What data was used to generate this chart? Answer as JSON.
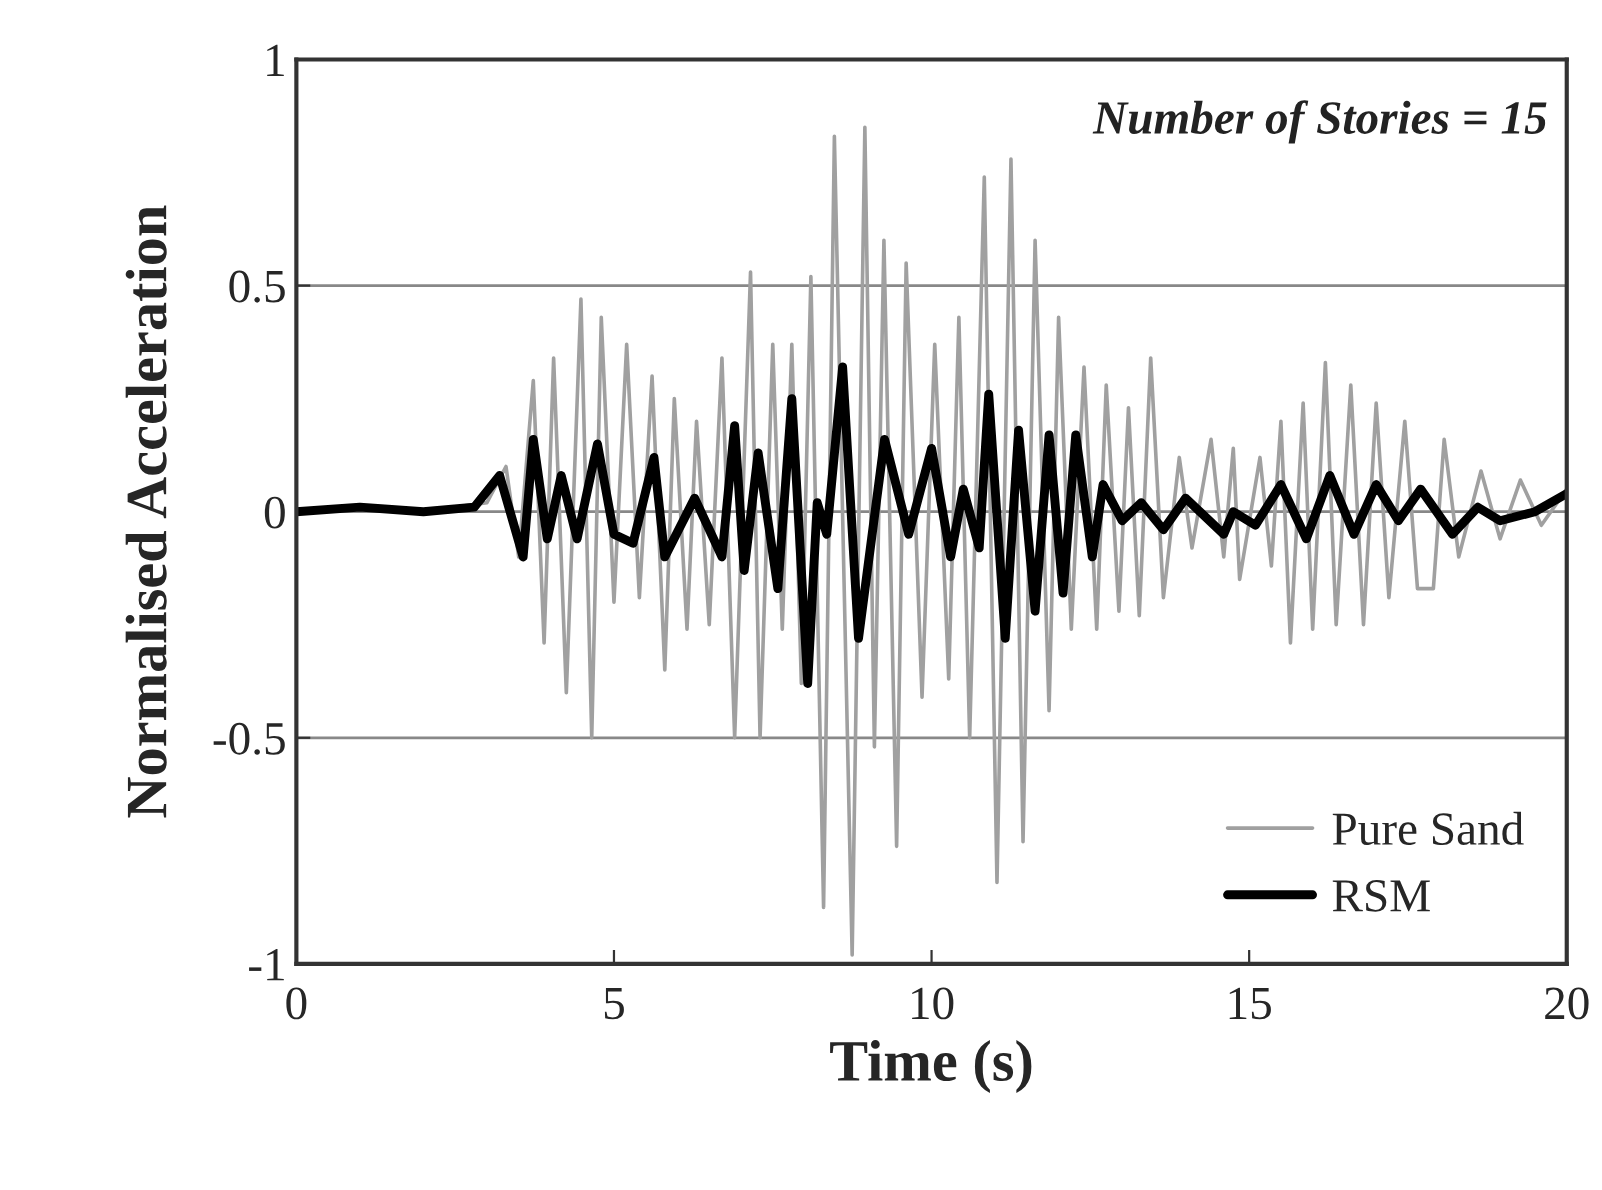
{
  "chart_data": {
    "type": "line",
    "xlabel": "Time (s)",
    "ylabel": "Normalised Acceleration",
    "annotations": [
      "Number of Stories = 15"
    ],
    "xlim": [
      0,
      20
    ],
    "ylim": [
      -1,
      1
    ],
    "xticks": [
      0,
      5,
      10,
      15,
      20
    ],
    "yticks": [
      -1,
      -0.5,
      0,
      0.5,
      1
    ],
    "grid": "y",
    "legend": "bottom right",
    "line_style": "solid",
    "marker": "none",
    "series": [
      {
        "name": "Pure Sand",
        "color": "#a0a0a0",
        "x": [
          0,
          1,
          2,
          3,
          3.3,
          3.5,
          3.73,
          3.9,
          4.05,
          4.25,
          4.48,
          4.65,
          4.8,
          5.0,
          5.2,
          5.4,
          5.6,
          5.8,
          5.95,
          6.15,
          6.3,
          6.5,
          6.7,
          6.9,
          7.15,
          7.3,
          7.5,
          7.65,
          7.8,
          7.95,
          8.1,
          8.3,
          8.47,
          8.75,
          8.95,
          9.1,
          9.25,
          9.45,
          9.6,
          9.85,
          10.05,
          10.27,
          10.43,
          10.6,
          10.83,
          11.03,
          11.25,
          11.44,
          11.63,
          11.85,
          12.0,
          12.2,
          12.4,
          12.6,
          12.75,
          12.95,
          13.1,
          13.27,
          13.45,
          13.65,
          13.9,
          14.1,
          14.4,
          14.6,
          14.75,
          14.85,
          15.17,
          15.35,
          15.5,
          15.65,
          15.85,
          16.0,
          16.2,
          16.37,
          16.6,
          16.8,
          17.0,
          17.2,
          17.45,
          17.65,
          17.9,
          18.07,
          18.3,
          18.65,
          18.95,
          19.27,
          19.6,
          20
        ],
        "values": [
          0,
          0.01,
          0,
          0.02,
          0.1,
          -0.1,
          0.29,
          -0.29,
          0.34,
          -0.4,
          0.47,
          -0.5,
          0.43,
          -0.2,
          0.37,
          -0.19,
          0.3,
          -0.35,
          0.25,
          -0.26,
          0.2,
          -0.25,
          0.34,
          -0.5,
          0.53,
          -0.5,
          0.37,
          -0.26,
          0.37,
          -0.38,
          0.52,
          -0.875,
          0.83,
          -0.98,
          0.85,
          -0.52,
          0.6,
          -0.74,
          0.55,
          -0.41,
          0.37,
          -0.37,
          0.43,
          -0.5,
          0.74,
          -0.82,
          0.78,
          -0.73,
          0.6,
          -0.44,
          0.43,
          -0.26,
          0.32,
          -0.26,
          0.28,
          -0.22,
          0.23,
          -0.23,
          0.34,
          -0.19,
          0.12,
          -0.08,
          0.16,
          -0.1,
          0.14,
          -0.15,
          0.12,
          -0.12,
          0.2,
          -0.29,
          0.24,
          -0.26,
          0.33,
          -0.25,
          0.28,
          -0.25,
          0.24,
          -0.19,
          0.2,
          -0.17,
          -0.17,
          0.16,
          -0.1,
          0.09,
          -0.06,
          0.07,
          -0.03,
          0.05
        ]
      },
      {
        "name": "RSM",
        "color": "#000000",
        "x": [
          0,
          1,
          2,
          2.8,
          3.2,
          3.57,
          3.73,
          3.95,
          4.17,
          4.42,
          4.74,
          5.0,
          5.3,
          5.63,
          5.8,
          6.27,
          6.7,
          6.9,
          7.05,
          7.27,
          7.58,
          7.8,
          8.05,
          8.2,
          8.35,
          8.6,
          8.85,
          9.26,
          9.64,
          10.0,
          10.3,
          10.5,
          10.75,
          10.9,
          11.16,
          11.37,
          11.63,
          11.85,
          12.07,
          12.27,
          12.53,
          12.7,
          13.0,
          13.3,
          13.65,
          14.0,
          14.6,
          14.75,
          15.1,
          15.5,
          15.9,
          16.27,
          16.65,
          17.0,
          17.35,
          17.7,
          18.2,
          18.6,
          18.95,
          19.5,
          20
        ],
        "values": [
          0,
          0.01,
          0,
          0.01,
          0.08,
          -0.1,
          0.16,
          -0.06,
          0.08,
          -0.06,
          0.15,
          -0.05,
          -0.07,
          0.12,
          -0.1,
          0.03,
          -0.1,
          0.19,
          -0.13,
          0.13,
          -0.17,
          0.25,
          -0.38,
          0.02,
          -0.05,
          0.32,
          -0.28,
          0.16,
          -0.05,
          0.14,
          -0.1,
          0.05,
          -0.08,
          0.26,
          -0.28,
          0.18,
          -0.22,
          0.17,
          -0.18,
          0.17,
          -0.1,
          0.06,
          -0.02,
          0.02,
          -0.04,
          0.03,
          -0.05,
          0.0,
          -0.03,
          0.06,
          -0.06,
          0.08,
          -0.05,
          0.06,
          -0.02,
          0.05,
          -0.05,
          0.01,
          -0.02,
          0.0,
          0.04
        ]
      }
    ]
  }
}
